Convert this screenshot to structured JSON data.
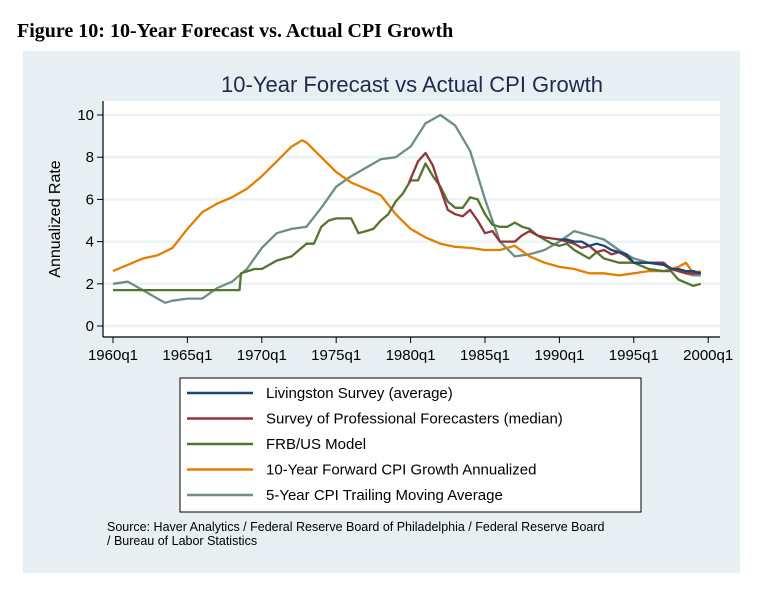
{
  "figure_caption": "Figure 10: 10-Year Forecast vs. Actual CPI Growth",
  "source": {
    "line1": "Source:  Haver Analytics / Federal Reserve Board of Philadelphia / Federal Reserve Board",
    "line2": " / Bureau of Labor Statistics"
  },
  "chart_data": {
    "type": "line",
    "title": "10-Year Forecast vs Actual CPI Growth",
    "xlabel": "",
    "ylabel": "Annualized Rate",
    "xlim": [
      1959.3,
      2001.0
    ],
    "ylim": [
      -0.5,
      10.5
    ],
    "x_ticks": [
      1960,
      1965,
      1970,
      1975,
      1980,
      1985,
      1990,
      1995,
      2000
    ],
    "x_tick_labels": [
      "1960q1",
      "1965q1",
      "1970q1",
      "1975q1",
      "1980q1",
      "1985q1",
      "1990q1",
      "1995q1",
      "2000q1"
    ],
    "y_ticks": [
      0,
      2,
      4,
      6,
      8,
      10
    ],
    "y_tick_labels": [
      "0",
      "2",
      "4",
      "6",
      "8",
      "10"
    ],
    "grid": true,
    "legend_position": "bottom",
    "series": [
      {
        "name": "Livingston Survey (average)",
        "color": "#1a476f",
        "x": [
          1990.0,
          1990.5,
          1991.0,
          1991.5,
          1992.0,
          1992.5,
          1993.0,
          1993.5,
          1994.0,
          1994.5,
          1995.0,
          1996.0,
          1997.0,
          1997.5,
          1998.0,
          1998.5,
          1999.0,
          1999.5
        ],
        "y": [
          4.1,
          4.1,
          4.0,
          4.0,
          3.8,
          3.9,
          3.8,
          3.6,
          3.5,
          3.4,
          3.0,
          3.0,
          2.9,
          2.7,
          2.7,
          2.6,
          2.6,
          2.5
        ]
      },
      {
        "name": "Survey of Professional Forecasters (median)",
        "color": "#90353b",
        "x": [
          1979.9,
          1980.5,
          1981.0,
          1981.5,
          1982.0,
          1982.5,
          1983.0,
          1983.5,
          1984.0,
          1984.5,
          1985.0,
          1985.5,
          1986.0,
          1987.0,
          1987.5,
          1988.0,
          1988.5,
          1989.0,
          1990.0,
          1990.5,
          1991.0,
          1991.5,
          1992.0,
          1992.5,
          1993.0,
          1993.5,
          1994.0,
          1994.5,
          1995.0,
          1996.0,
          1997.0,
          1997.5,
          1998.0,
          1998.5,
          1999.0,
          1999.5
        ],
        "y": [
          6.8,
          7.8,
          8.2,
          7.6,
          6.5,
          5.5,
          5.3,
          5.2,
          5.5,
          5.0,
          4.4,
          4.5,
          4.0,
          4.0,
          4.3,
          4.5,
          4.3,
          4.2,
          4.1,
          4.0,
          3.9,
          3.7,
          3.8,
          3.5,
          3.6,
          3.4,
          3.5,
          3.3,
          3.0,
          3.0,
          3.0,
          2.7,
          2.6,
          2.5,
          2.5,
          2.5
        ]
      },
      {
        "name": "FRB/US Model",
        "color": "#55752f",
        "x": [
          1960.0,
          1968.5,
          1968.6,
          1969.5,
          1970.0,
          1971.0,
          1971.5,
          1972.0,
          1973.0,
          1973.5,
          1974.0,
          1974.5,
          1975.0,
          1976.0,
          1976.5,
          1977.0,
          1977.5,
          1978.0,
          1978.5,
          1979.0,
          1979.5,
          1980.0,
          1980.5,
          1981.0,
          1981.5,
          1982.0,
          1982.5,
          1983.0,
          1983.5,
          1984.0,
          1984.5,
          1985.0,
          1985.5,
          1986.0,
          1986.5,
          1987.0,
          1987.5,
          1988.0,
          1988.5,
          1989.0,
          1989.5,
          1990.0,
          1990.5,
          1991.0,
          1991.5,
          1992.0,
          1992.5,
          1993.0,
          1994.0,
          1995.0,
          1996.0,
          1997.0,
          1997.5,
          1998.0,
          1999.0,
          1999.5
        ],
        "y": [
          1.7,
          1.7,
          2.5,
          2.7,
          2.7,
          3.1,
          3.2,
          3.3,
          3.9,
          3.9,
          4.7,
          5.0,
          5.1,
          5.1,
          4.4,
          4.5,
          4.6,
          5.0,
          5.3,
          5.9,
          6.3,
          6.9,
          6.9,
          7.7,
          7.1,
          6.6,
          5.9,
          5.6,
          5.6,
          6.1,
          6.0,
          5.3,
          4.8,
          4.7,
          4.7,
          4.9,
          4.7,
          4.6,
          4.3,
          4.1,
          3.9,
          3.8,
          3.9,
          3.6,
          3.4,
          3.2,
          3.5,
          3.2,
          3.0,
          3.0,
          2.7,
          2.6,
          2.6,
          2.2,
          1.9,
          2.0
        ]
      },
      {
        "name": "10-Year Forward CPI Growth Annualized",
        "color": "#e37e00",
        "x": [
          1960.0,
          1961.0,
          1962.0,
          1963.0,
          1964.0,
          1965.0,
          1966.0,
          1967.0,
          1968.0,
          1969.0,
          1970.0,
          1971.0,
          1972.0,
          1972.7,
          1973.0,
          1974.0,
          1975.0,
          1976.0,
          1977.0,
          1978.0,
          1979.0,
          1980.0,
          1981.0,
          1982.0,
          1983.0,
          1984.0,
          1985.0,
          1986.0,
          1987.0,
          1988.0,
          1989.0,
          1990.0,
          1991.0,
          1992.0,
          1993.0,
          1994.0,
          1995.0,
          1996.0,
          1997.0,
          1998.0,
          1998.5,
          1999.0,
          1999.5
        ],
        "y": [
          2.6,
          2.9,
          3.2,
          3.35,
          3.7,
          4.6,
          5.4,
          5.8,
          6.1,
          6.5,
          7.1,
          7.8,
          8.5,
          8.8,
          8.7,
          8.0,
          7.3,
          6.8,
          6.5,
          6.2,
          5.3,
          4.6,
          4.2,
          3.9,
          3.75,
          3.7,
          3.6,
          3.6,
          3.8,
          3.3,
          3.0,
          2.8,
          2.7,
          2.5,
          2.5,
          2.4,
          2.5,
          2.6,
          2.6,
          2.8,
          3.0,
          2.5,
          2.6
        ]
      },
      {
        "name": "5-Year CPI Trailing Moving Average",
        "color": "#6e8e84",
        "x": [
          1960.0,
          1961.0,
          1962.0,
          1963.0,
          1963.5,
          1964.0,
          1965.0,
          1966.0,
          1967.0,
          1968.0,
          1969.0,
          1970.0,
          1971.0,
          1972.0,
          1973.0,
          1974.0,
          1975.0,
          1976.0,
          1977.0,
          1978.0,
          1979.0,
          1980.0,
          1981.0,
          1982.0,
          1983.0,
          1984.0,
          1985.0,
          1986.0,
          1987.0,
          1988.0,
          1989.0,
          1990.0,
          1991.0,
          1992.0,
          1993.0,
          1994.0,
          1995.0,
          1996.0,
          1997.0,
          1998.0,
          1999.0,
          1999.5
        ],
        "y": [
          2.0,
          2.1,
          1.7,
          1.3,
          1.1,
          1.2,
          1.3,
          1.3,
          1.8,
          2.1,
          2.7,
          3.7,
          4.4,
          4.6,
          4.7,
          5.6,
          6.6,
          7.1,
          7.5,
          7.9,
          8.0,
          8.5,
          9.6,
          10.0,
          9.5,
          8.3,
          6.0,
          4.0,
          3.3,
          3.4,
          3.6,
          4.0,
          4.5,
          4.3,
          4.1,
          3.6,
          3.2,
          3.0,
          2.9,
          2.6,
          2.4,
          2.4
        ]
      }
    ]
  }
}
